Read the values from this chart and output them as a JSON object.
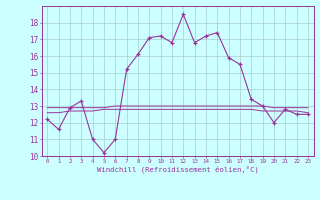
{
  "xlabel": "Windchill (Refroidissement éolien,°C)",
  "x": [
    0,
    1,
    2,
    3,
    4,
    5,
    6,
    7,
    8,
    9,
    10,
    11,
    12,
    13,
    14,
    15,
    16,
    17,
    18,
    19,
    20,
    21,
    22,
    23
  ],
  "y_main": [
    12.2,
    11.6,
    12.9,
    13.3,
    11.0,
    10.2,
    11.0,
    15.2,
    16.1,
    17.1,
    17.2,
    16.8,
    18.5,
    16.8,
    17.2,
    17.4,
    15.9,
    15.5,
    13.4,
    13.0,
    12.0,
    12.8,
    12.5,
    12.5
  ],
  "y_line2": [
    12.9,
    12.9,
    12.9,
    12.9,
    12.9,
    12.9,
    13.0,
    13.0,
    13.0,
    13.0,
    13.0,
    13.0,
    13.0,
    13.0,
    13.0,
    13.0,
    13.0,
    13.0,
    13.0,
    13.0,
    12.9,
    12.9,
    12.9,
    12.9
  ],
  "y_line3": [
    12.6,
    12.6,
    12.7,
    12.7,
    12.7,
    12.8,
    12.8,
    12.8,
    12.8,
    12.8,
    12.8,
    12.8,
    12.8,
    12.8,
    12.8,
    12.8,
    12.8,
    12.8,
    12.8,
    12.7,
    12.7,
    12.7,
    12.7,
    12.6
  ],
  "color": "#993399",
  "bg_color": "#ccffff",
  "grid_color": "#aacccc",
  "ylim": [
    10,
    19
  ],
  "xlim": [
    -0.5,
    23.5
  ],
  "yticks": [
    10,
    11,
    12,
    13,
    14,
    15,
    16,
    17,
    18
  ],
  "xtick_labels": [
    "0",
    "1",
    "2",
    "3",
    "4",
    "5",
    "6",
    "7",
    "8",
    "9",
    "10",
    "11",
    "12",
    "13",
    "14",
    "15",
    "16",
    "17",
    "18",
    "19",
    "20",
    "21",
    "22",
    "23"
  ]
}
